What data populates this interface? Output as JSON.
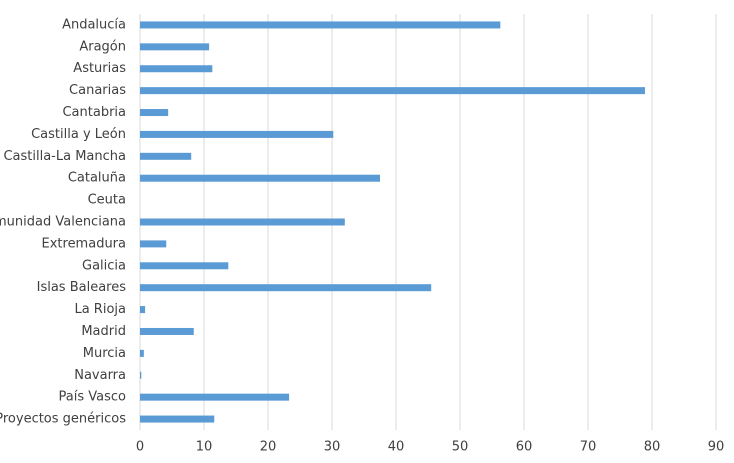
{
  "chart_data": {
    "type": "hbar",
    "categories": [
      "Andalucía",
      "Aragón",
      "Asturias",
      "Canarias",
      "Cantabria",
      "Castilla y León",
      "Castilla-La Mancha",
      "Cataluña",
      "Ceuta",
      "Comunidad Valenciana",
      "Extremadura",
      "Galicia",
      "Islas Baleares",
      "La Rioja",
      "Madrid",
      "Murcia",
      "Navarra",
      "País Vasco",
      "Proyectos genéricos"
    ],
    "values": [
      56.3,
      10.8,
      11.3,
      78.9,
      4.4,
      30.2,
      8.0,
      37.5,
      0,
      32.0,
      4.1,
      13.8,
      45.5,
      0.8,
      8.4,
      0.6,
      0.2,
      23.3,
      11.6
    ],
    "color": "#5b9bd5",
    "xlim": [
      0,
      90
    ],
    "xticks": [
      0,
      10,
      20,
      30,
      40,
      50,
      60,
      70,
      80,
      90
    ],
    "grid": true
  }
}
